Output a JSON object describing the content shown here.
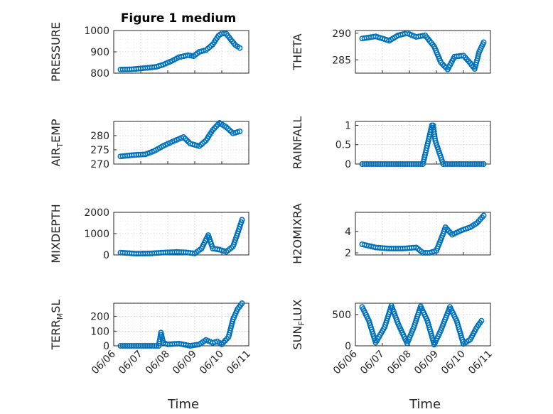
{
  "figure": {
    "title": "Figure 1 medium",
    "marker_color": "#0072BD"
  },
  "chart_data": [
    {
      "type": "scatter",
      "title": "Figure 1 medium",
      "ylabel": "PRESSURE",
      "xlabel": "",
      "ylim": [
        800,
        1000
      ],
      "yticks": [
        800,
        900,
        1000
      ],
      "xlim": [
        "06/06",
        "06/11"
      ],
      "xticks": [
        "06/06",
        "06/07",
        "06/08",
        "06/09",
        "06/10",
        "06/11"
      ],
      "grid": true,
      "points": [
        [
          "06/06 06:00",
          817
        ],
        [
          "06/06 16:00",
          818
        ],
        [
          "06/07 00:00",
          822
        ],
        [
          "06/07 08:00",
          826
        ],
        [
          "06/07 14:00",
          830
        ],
        [
          "06/07 20:00",
          840
        ],
        [
          "06/08 04:00",
          858
        ],
        [
          "06/08 10:00",
          875
        ],
        [
          "06/08 18:00",
          884
        ],
        [
          "06/08 23:00",
          880
        ],
        [
          "06/09 04:00",
          900
        ],
        [
          "06/09 10:00",
          908
        ],
        [
          "06/09 16:00",
          935
        ],
        [
          "06/09 21:00",
          975
        ],
        [
          "06/10 00:00",
          987
        ],
        [
          "06/10 04:00",
          985
        ],
        [
          "06/10 08:00",
          958
        ],
        [
          "06/10 12:00",
          932
        ],
        [
          "06/10 16:00",
          918
        ]
      ]
    },
    {
      "type": "scatter",
      "title": "",
      "ylabel": "THETA",
      "xlabel": "",
      "ylim": [
        282.5,
        290.5
      ],
      "yticks": [
        285,
        290
      ],
      "xlim": [
        "06/06",
        "06/11"
      ],
      "xticks": [
        "06/06",
        "06/07",
        "06/08",
        "06/09",
        "06/10",
        "06/11"
      ],
      "grid": true,
      "points": [
        [
          "06/06 06:00",
          289
        ],
        [
          "06/06 18:00",
          289.4
        ],
        [
          "06/07 06:00",
          288.6
        ],
        [
          "06/07 14:00",
          289.6
        ],
        [
          "06/07 22:00",
          290
        ],
        [
          "06/08 06:00",
          289.3
        ],
        [
          "06/08 14:00",
          289.6
        ],
        [
          "06/08 22:00",
          287.5
        ],
        [
          "06/09 04:00",
          284.5
        ],
        [
          "06/09 10:00",
          283.2
        ],
        [
          "06/09 16:00",
          285.6
        ],
        [
          "06/10 00:00",
          285.8
        ],
        [
          "06/10 06:00",
          284.4
        ],
        [
          "06/10 10:00",
          283.3
        ],
        [
          "06/10 14:00",
          286.5
        ],
        [
          "06/10 18:00",
          288.3
        ]
      ]
    },
    {
      "type": "scatter",
      "title": "",
      "ylabel": "AIR_TEMP",
      "xlabel": "",
      "ylim": [
        270,
        285
      ],
      "yticks": [
        270,
        275,
        280
      ],
      "xlim": [
        "06/06",
        "06/11"
      ],
      "xticks": [
        "06/06",
        "06/07",
        "06/08",
        "06/09",
        "06/10",
        "06/11"
      ],
      "grid": true,
      "points": [
        [
          "06/06 06:00",
          272.7
        ],
        [
          "06/06 18:00",
          273.2
        ],
        [
          "06/07 04:00",
          273.4
        ],
        [
          "06/07 12:00",
          274.6
        ],
        [
          "06/07 20:00",
          276.4
        ],
        [
          "06/08 06:00",
          278.2
        ],
        [
          "06/08 14:00",
          279.5
        ],
        [
          "06/08 20:00",
          277.2
        ],
        [
          "06/09 04:00",
          276.3
        ],
        [
          "06/09 10:00",
          278.3
        ],
        [
          "06/09 16:00",
          282
        ],
        [
          "06/09 22:00",
          284.5
        ],
        [
          "06/10 04:00",
          283
        ],
        [
          "06/10 10:00",
          280.8
        ],
        [
          "06/10 16:00",
          281.5
        ]
      ]
    },
    {
      "type": "scatter",
      "title": "",
      "ylabel": "RAINFALL",
      "xlabel": "",
      "ylim": [
        0,
        1.1
      ],
      "yticks": [
        0,
        0.5,
        1
      ],
      "xlim": [
        "06/06",
        "06/11"
      ],
      "xticks": [
        "06/06",
        "06/07",
        "06/08",
        "06/09",
        "06/10",
        "06/11"
      ],
      "grid": true,
      "points": [
        [
          "06/06 06:00",
          0
        ],
        [
          "06/07 00:00",
          0
        ],
        [
          "06/07 18:00",
          0
        ],
        [
          "06/08 12:00",
          0
        ],
        [
          "06/08 20:00",
          1
        ],
        [
          "06/08 21:00",
          1
        ],
        [
          "06/08 23:00",
          0.6
        ],
        [
          "06/09 06:00",
          0
        ],
        [
          "06/09 18:00",
          0
        ],
        [
          "06/10 06:00",
          0
        ],
        [
          "06/10 18:00",
          0
        ]
      ]
    },
    {
      "type": "scatter",
      "title": "",
      "ylabel": "MIXDEPTH",
      "xlabel": "",
      "ylim": [
        0,
        2000
      ],
      "yticks": [
        0,
        1000,
        2000
      ],
      "xlim": [
        "06/06",
        "06/11"
      ],
      "xticks": [
        "06/06",
        "06/07",
        "06/08",
        "06/09",
        "06/10",
        "06/11"
      ],
      "grid": true,
      "points": [
        [
          "06/06 06:00",
          110
        ],
        [
          "06/06 20:00",
          60
        ],
        [
          "06/07 08:00",
          70
        ],
        [
          "06/07 20:00",
          110
        ],
        [
          "06/08 08:00",
          140
        ],
        [
          "06/08 16:00",
          120
        ],
        [
          "06/09 00:00",
          70
        ],
        [
          "06/09 06:00",
          300
        ],
        [
          "06/09 12:00",
          930
        ],
        [
          "06/09 16:00",
          300
        ],
        [
          "06/09 22:00",
          250
        ],
        [
          "06/10 04:00",
          150
        ],
        [
          "06/10 10:00",
          400
        ],
        [
          "06/10 14:00",
          1000
        ],
        [
          "06/10 18:00",
          1650
        ]
      ]
    },
    {
      "type": "scatter",
      "title": "",
      "ylabel": "H2OMIXRA",
      "xlabel": "",
      "ylim": [
        1.8,
        5.8
      ],
      "yticks": [
        2,
        4
      ],
      "xlim": [
        "06/06",
        "06/11"
      ],
      "xticks": [
        "06/06",
        "06/07",
        "06/08",
        "06/09",
        "06/10",
        "06/11"
      ],
      "grid": true,
      "points": [
        [
          "06/06 06:00",
          2.8
        ],
        [
          "06/06 18:00",
          2.5
        ],
        [
          "06/07 06:00",
          2.4
        ],
        [
          "06/07 18:00",
          2.4
        ],
        [
          "06/08 06:00",
          2.5
        ],
        [
          "06/08 12:00",
          2
        ],
        [
          "06/08 18:00",
          2
        ],
        [
          "06/09 00:00",
          2.2
        ],
        [
          "06/09 06:00",
          3.8
        ],
        [
          "06/09 08:00",
          4.4
        ],
        [
          "06/09 14:00",
          3.7
        ],
        [
          "06/09 22:00",
          4.1
        ],
        [
          "06/10 06:00",
          4.4
        ],
        [
          "06/10 12:00",
          4.8
        ],
        [
          "06/10 18:00",
          5.5
        ]
      ]
    },
    {
      "type": "scatter",
      "title": "",
      "ylabel": "TERR_MSL",
      "xlabel": "Time",
      "ylim": [
        0,
        290
      ],
      "yticks": [
        0,
        100,
        200
      ],
      "xlim": [
        "06/06",
        "06/11"
      ],
      "xticks": [
        "06/06",
        "06/07",
        "06/08",
        "06/09",
        "06/10",
        "06/11"
      ],
      "grid": true,
      "points": [
        [
          "06/06 06:00",
          0
        ],
        [
          "06/06 20:00",
          0
        ],
        [
          "06/07 06:00",
          0
        ],
        [
          "06/07 16:00",
          0
        ],
        [
          "06/07 18:00",
          90
        ],
        [
          "06/07 20:00",
          20
        ],
        [
          "06/08 00:00",
          10
        ],
        [
          "06/08 10:00",
          15
        ],
        [
          "06/08 20:00",
          0
        ],
        [
          "06/09 04:00",
          10
        ],
        [
          "06/09 10:00",
          40
        ],
        [
          "06/09 16:00",
          20
        ],
        [
          "06/09 20:00",
          30
        ],
        [
          "06/10 00:00",
          10
        ],
        [
          "06/10 06:00",
          60
        ],
        [
          "06/10 10:00",
          180
        ],
        [
          "06/10 14:00",
          250
        ],
        [
          "06/10 18:00",
          290
        ]
      ]
    },
    {
      "type": "scatter",
      "title": "",
      "ylabel": "SUN_FLUX",
      "xlabel": "Time",
      "ylim": [
        0,
        680
      ],
      "yticks": [
        0,
        500
      ],
      "xlim": [
        "06/06",
        "06/11"
      ],
      "xticks": [
        "06/06",
        "06/07",
        "06/08",
        "06/09",
        "06/10",
        "06/11"
      ],
      "grid": true,
      "points": [
        [
          "06/06 06:00",
          620
        ],
        [
          "06/06 12:00",
          400
        ],
        [
          "06/06 18:00",
          50
        ],
        [
          "06/07 02:00",
          300
        ],
        [
          "06/07 08:00",
          640
        ],
        [
          "06/07 14:00",
          350
        ],
        [
          "06/07 22:00",
          40
        ],
        [
          "06/08 04:00",
          300
        ],
        [
          "06/08 10:00",
          630
        ],
        [
          "06/08 16:00",
          400
        ],
        [
          "06/08 22:00",
          20
        ],
        [
          "06/09 04:00",
          250
        ],
        [
          "06/09 12:00",
          620
        ],
        [
          "06/09 18:00",
          400
        ],
        [
          "06/10 00:00",
          30
        ],
        [
          "06/10 06:00",
          100
        ],
        [
          "06/10 12:00",
          300
        ],
        [
          "06/10 16:00",
          400
        ]
      ]
    }
  ]
}
